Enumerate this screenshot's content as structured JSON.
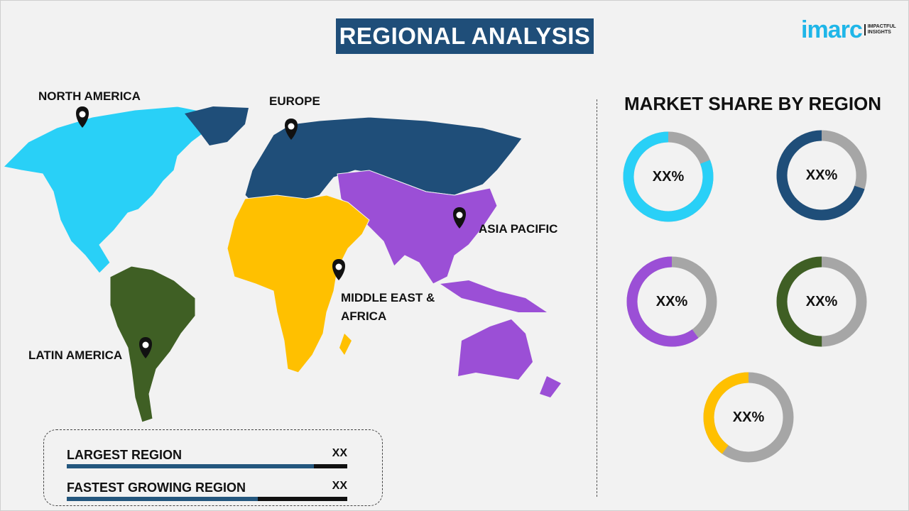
{
  "header": {
    "title": "REGIONAL ANALYSIS"
  },
  "logo": {
    "word": "imarc",
    "tagline_1": "IMPACTFUL",
    "tagline_2": "INSIGHTS",
    "color": "#1fb6e8"
  },
  "map": {
    "regions": [
      {
        "name": "NORTH AMERICA",
        "color": "#29d0f7"
      },
      {
        "name": "EUROPE",
        "color": "#1f4e79"
      },
      {
        "name": "ASIA PACIFIC",
        "color": "#9b4fd6"
      },
      {
        "name": "MIDDLE EAST & AFRICA",
        "line1": "MIDDLE EAST &",
        "line2": "AFRICA",
        "color": "#ffc000"
      },
      {
        "name": "LATIN AMERICA",
        "color": "#3f5f24"
      }
    ],
    "marker_icon": "map-pin-icon"
  },
  "market_share": {
    "title": "MARKET SHARE BY REGION",
    "remainder_color": "#a6a6a6",
    "donuts": [
      {
        "region": "North America",
        "label": "XX%",
        "color": "#29d0f7",
        "fill": 0.81
      },
      {
        "region": "Europe",
        "label": "XX%",
        "color": "#1f4e79",
        "fill": 0.7
      },
      {
        "region": "Asia Pacific",
        "label": "XX%",
        "color": "#9b4fd6",
        "fill": 0.6
      },
      {
        "region": "Latin America",
        "label": "XX%",
        "color": "#3f5f24",
        "fill": 0.5
      },
      {
        "region": "Middle East & Africa",
        "label": "XX%",
        "color": "#ffc000",
        "fill": 0.4
      }
    ]
  },
  "summary": {
    "rows": [
      {
        "label": "LARGEST REGION",
        "value": "XX",
        "fill": 0.88
      },
      {
        "label": "FASTEST GROWING REGION",
        "value": "XX",
        "fill": 0.68
      }
    ]
  }
}
